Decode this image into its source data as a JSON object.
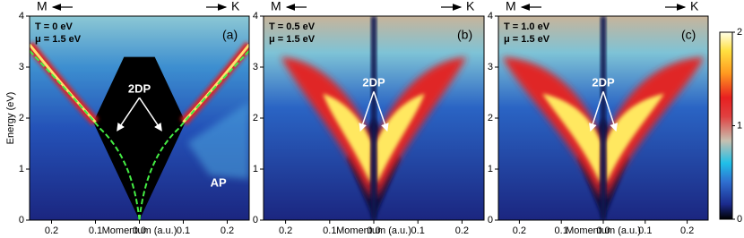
{
  "panels": [
    {
      "label": "(a)",
      "temperature": "T =    0 eV",
      "potential": "μ = 1.5 eV",
      "annotations": [
        "2DP",
        "AP"
      ]
    },
    {
      "label": "(b)",
      "temperature": "T = 0.5 eV",
      "potential": "μ = 1.5 eV",
      "annotations": [
        "2DP"
      ]
    },
    {
      "label": "(c)",
      "temperature": "T = 1.0 eV",
      "potential": "μ = 1.5 eV",
      "annotations": [
        "2DP"
      ]
    }
  ],
  "direction_left": "M",
  "direction_right": "K",
  "x_label": "Momentum (a.u.)",
  "y_label": "Energy (eV)",
  "xlim": [
    -0.25,
    0.25
  ],
  "ylim": [
    0,
    4
  ],
  "xticks": [
    {
      "value": -0.2,
      "label": "0.2"
    },
    {
      "value": -0.1,
      "label": "0.1"
    },
    {
      "value": 0,
      "label": "0.0"
    },
    {
      "value": 0.1,
      "label": "0.1"
    },
    {
      "value": 0.2,
      "label": "0.2"
    }
  ],
  "yticks": [
    0,
    1,
    2,
    3,
    4
  ],
  "colorbar": {
    "lim": [
      0,
      2
    ],
    "ticks": [
      0,
      1,
      2
    ]
  }
}
